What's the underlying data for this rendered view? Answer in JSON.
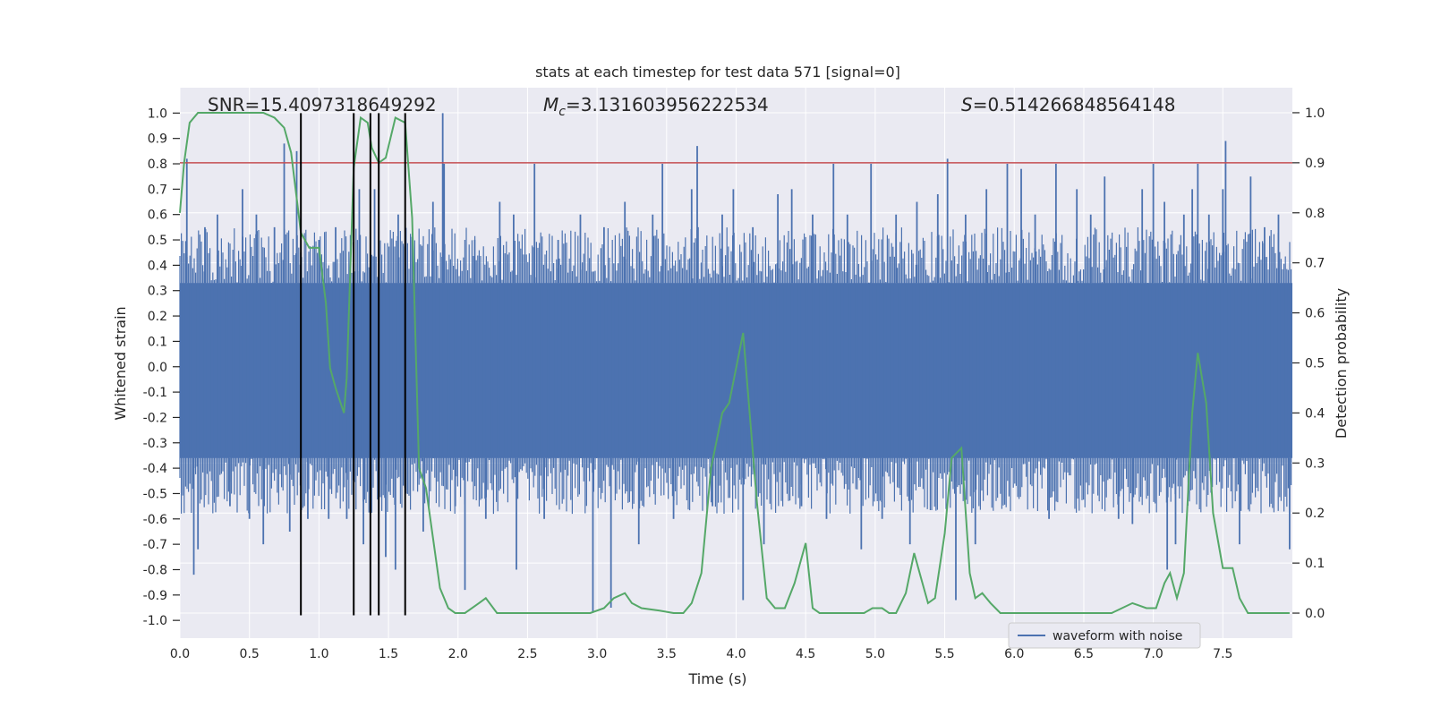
{
  "colors": {
    "plot_bg": "#EAEAF2",
    "grid": "#FFFFFF",
    "waveform": "#4C72B0",
    "probability": "#55A868",
    "threshold": "#C44E52",
    "markers": "#000000",
    "text": "#262626"
  },
  "chart_data": {
    "type": "line",
    "title": "stats at each timestep for test data 571 [signal=0]",
    "xlabel": "Time (s)",
    "ylabel_left": "Whitened strain",
    "ylabel_right": "Detection probability",
    "xlim": [
      0,
      8
    ],
    "ylim_left": [
      -1.07,
      1.1
    ],
    "ylim_right": [
      -0.05,
      1.05
    ],
    "x_ticks": [
      "0.0",
      "0.5",
      "1.0",
      "1.5",
      "2.0",
      "2.5",
      "3.0",
      "3.5",
      "4.0",
      "4.5",
      "5.0",
      "5.5",
      "6.0",
      "6.5",
      "7.0",
      "7.5"
    ],
    "y_left_ticks": [
      "-1.0",
      "-0.9",
      "-0.8",
      "-0.7",
      "-0.6",
      "-0.5",
      "-0.4",
      "-0.3",
      "-0.2",
      "-0.1",
      "0.0",
      "0.1",
      "0.2",
      "0.3",
      "0.4",
      "0.5",
      "0.6",
      "0.7",
      "0.8",
      "0.9",
      "1.0"
    ],
    "y_right_ticks": [
      "0.0",
      "0.1",
      "0.2",
      "0.3",
      "0.4",
      "0.5",
      "0.6",
      "0.7",
      "0.8",
      "0.9",
      "1.0"
    ],
    "grid": true,
    "legend": {
      "position": "lower-right",
      "entries": [
        "waveform with noise"
      ]
    },
    "annotations": {
      "snr": "SNR=15.4097318649292",
      "mc_symbol": "M",
      "mc_sub": "c",
      "mc_value": "=3.131603956222534",
      "s_symbol": "S",
      "s_value": "=0.514266848564148"
    },
    "threshold": {
      "axis": "right",
      "value": 0.9
    },
    "vertical_markers": [
      0.87,
      1.25,
      1.37,
      1.43,
      1.62
    ],
    "waveform": {
      "name": "waveform with noise",
      "band": [
        -0.36,
        0.33
      ],
      "spikes": [
        [
          0.05,
          0.82
        ],
        [
          0.1,
          -0.82
        ],
        [
          0.13,
          -0.72
        ],
        [
          0.18,
          0.55
        ],
        [
          0.27,
          0.6
        ],
        [
          0.36,
          -0.55
        ],
        [
          0.45,
          0.7
        ],
        [
          0.5,
          -0.6
        ],
        [
          0.55,
          0.6
        ],
        [
          0.6,
          -0.7
        ],
        [
          0.68,
          0.55
        ],
        [
          0.75,
          0.88
        ],
        [
          0.79,
          -0.65
        ],
        [
          0.84,
          0.85
        ],
        [
          0.87,
          0.45
        ],
        [
          0.92,
          -0.6
        ],
        [
          1.0,
          0.5
        ],
        [
          1.07,
          -0.6
        ],
        [
          1.12,
          0.55
        ],
        [
          1.2,
          -0.6
        ],
        [
          1.29,
          0.7
        ],
        [
          1.32,
          -0.7
        ],
        [
          1.4,
          0.7
        ],
        [
          1.48,
          -0.75
        ],
        [
          1.55,
          -0.8
        ],
        [
          1.57,
          0.6
        ],
        [
          1.67,
          0.5
        ],
        [
          1.75,
          -0.65
        ],
        [
          1.82,
          0.65
        ],
        [
          1.89,
          1.0
        ],
        [
          1.9,
          0.8
        ],
        [
          1.98,
          -0.55
        ],
        [
          2.05,
          -0.88
        ],
        [
          2.12,
          0.5
        ],
        [
          2.2,
          -0.6
        ],
        [
          2.3,
          0.65
        ],
        [
          2.4,
          0.6
        ],
        [
          2.42,
          -0.8
        ],
        [
          2.55,
          0.8
        ],
        [
          2.62,
          -0.6
        ],
        [
          2.72,
          0.5
        ],
        [
          2.88,
          0.6
        ],
        [
          2.97,
          -0.97
        ],
        [
          3.05,
          0.55
        ],
        [
          3.1,
          -0.95
        ],
        [
          3.2,
          0.65
        ],
        [
          3.3,
          -0.7
        ],
        [
          3.4,
          0.6
        ],
        [
          3.47,
          0.8
        ],
        [
          3.55,
          -0.6
        ],
        [
          3.68,
          0.7
        ],
        [
          3.72,
          0.87
        ],
        [
          3.83,
          -0.55
        ],
        [
          3.9,
          0.6
        ],
        [
          3.98,
          0.7
        ],
        [
          4.05,
          -0.92
        ],
        [
          4.12,
          0.55
        ],
        [
          4.2,
          -0.7
        ],
        [
          4.3,
          0.68
        ],
        [
          4.4,
          0.7
        ],
        [
          4.47,
          -0.55
        ],
        [
          4.55,
          0.6
        ],
        [
          4.65,
          -0.6
        ],
        [
          4.7,
          0.8
        ],
        [
          4.8,
          0.6
        ],
        [
          4.9,
          -0.72
        ],
        [
          4.97,
          0.8
        ],
        [
          5.05,
          -0.6
        ],
        [
          5.15,
          0.6
        ],
        [
          5.25,
          -0.7
        ],
        [
          5.3,
          0.65
        ],
        [
          5.45,
          0.68
        ],
        [
          5.52,
          0.82
        ],
        [
          5.58,
          -0.92
        ],
        [
          5.65,
          0.6
        ],
        [
          5.72,
          -0.7
        ],
        [
          5.8,
          0.7
        ],
        [
          5.95,
          0.8
        ],
        [
          6.05,
          0.78
        ],
        [
          6.15,
          0.6
        ],
        [
          6.25,
          -0.6
        ],
        [
          6.3,
          0.8
        ],
        [
          6.45,
          0.7
        ],
        [
          6.55,
          0.6
        ],
        [
          6.65,
          0.75
        ],
        [
          6.75,
          -0.6
        ],
        [
          6.85,
          -0.62
        ],
        [
          6.92,
          0.7
        ],
        [
          7.0,
          0.8
        ],
        [
          7.08,
          0.65
        ],
        [
          7.1,
          -0.8
        ],
        [
          7.16,
          -0.7
        ],
        [
          7.22,
          0.6
        ],
        [
          7.28,
          0.7
        ],
        [
          7.32,
          0.8
        ],
        [
          7.4,
          0.6
        ],
        [
          7.5,
          0.7
        ],
        [
          7.52,
          0.89
        ],
        [
          7.62,
          -0.7
        ],
        [
          7.7,
          0.75
        ],
        [
          7.8,
          0.55
        ],
        [
          7.9,
          0.6
        ],
        [
          7.98,
          -0.72
        ]
      ]
    },
    "probability": {
      "name": "Detection probability",
      "x": [
        0.0,
        0.03,
        0.07,
        0.13,
        0.2,
        0.4,
        0.6,
        0.68,
        0.75,
        0.8,
        0.87,
        0.93,
        1.0,
        1.05,
        1.08,
        1.12,
        1.18,
        1.2,
        1.25,
        1.3,
        1.35,
        1.38,
        1.43,
        1.48,
        1.55,
        1.62,
        1.67,
        1.72,
        1.77,
        1.82,
        1.87,
        1.93,
        1.98,
        2.05,
        2.15,
        2.2,
        2.28,
        2.35,
        2.45,
        2.55,
        2.65,
        2.78,
        2.85,
        2.95,
        3.05,
        3.12,
        3.2,
        3.25,
        3.32,
        3.45,
        3.55,
        3.62,
        3.68,
        3.75,
        3.82,
        3.9,
        3.95,
        4.05,
        4.15,
        4.22,
        4.28,
        4.35,
        4.42,
        4.5,
        4.55,
        4.6,
        4.68,
        4.75,
        4.83,
        4.92,
        4.98,
        5.05,
        5.1,
        5.15,
        5.22,
        5.28,
        5.33,
        5.38,
        5.43,
        5.5,
        5.55,
        5.62,
        5.68,
        5.72,
        5.77,
        5.83,
        5.9,
        5.98,
        6.1,
        6.25,
        6.4,
        6.55,
        6.7,
        6.85,
        6.95,
        7.02,
        7.08,
        7.12,
        7.17,
        7.22,
        7.28,
        7.32,
        7.38,
        7.43,
        7.5,
        7.57,
        7.62,
        7.68,
        7.78,
        7.98
      ],
      "y": [
        0.8,
        0.9,
        0.98,
        1.0,
        1.0,
        1.0,
        1.0,
        0.99,
        0.97,
        0.92,
        0.76,
        0.73,
        0.73,
        0.62,
        0.49,
        0.45,
        0.4,
        0.47,
        0.89,
        0.99,
        0.98,
        0.93,
        0.9,
        0.91,
        0.99,
        0.98,
        0.79,
        0.29,
        0.25,
        0.15,
        0.05,
        0.01,
        0.0,
        0.0,
        0.02,
        0.03,
        0.0,
        0.0,
        0.0,
        0.0,
        0.0,
        0.0,
        0.0,
        0.0,
        0.01,
        0.03,
        0.04,
        0.02,
        0.01,
        0.005,
        0.0,
        0.0,
        0.02,
        0.08,
        0.29,
        0.4,
        0.42,
        0.56,
        0.22,
        0.03,
        0.01,
        0.01,
        0.06,
        0.14,
        0.01,
        0.0,
        0.0,
        0.0,
        0.0,
        0.0,
        0.01,
        0.01,
        0.0,
        0.0,
        0.04,
        0.12,
        0.07,
        0.02,
        0.03,
        0.16,
        0.31,
        0.33,
        0.08,
        0.03,
        0.04,
        0.02,
        0.0,
        0.0,
        0.0,
        0.0,
        0.0,
        0.0,
        0.0,
        0.02,
        0.01,
        0.01,
        0.06,
        0.08,
        0.03,
        0.08,
        0.4,
        0.52,
        0.42,
        0.2,
        0.09,
        0.09,
        0.03,
        0.0,
        0.0,
        0.0
      ]
    }
  }
}
